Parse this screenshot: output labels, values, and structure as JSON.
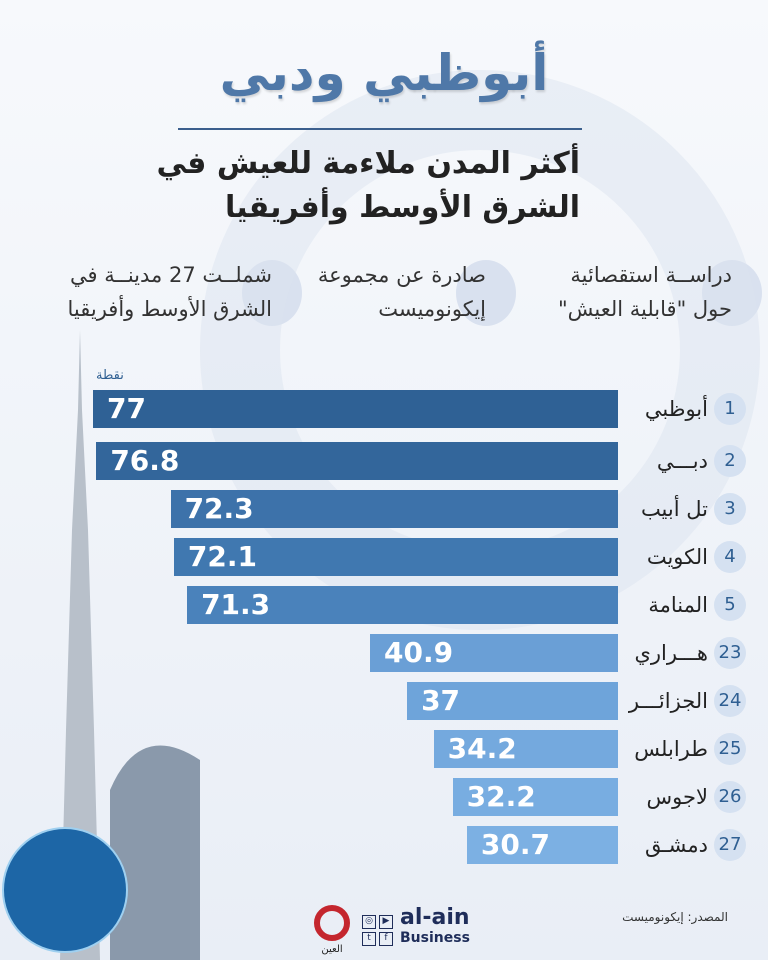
{
  "header": {
    "title": "أبوظبي ودبي",
    "subtitle_line1": "أكثر المدن ملاءمة للعيش في",
    "subtitle_line2": "الشرق الأوسط وأفريقيا"
  },
  "info": [
    {
      "line1": "دراســة استقصائية",
      "line2": "حول \"قابلية العيش\""
    },
    {
      "line1": "صادرة عن مجموعة",
      "line2": "إيكونوميست"
    },
    {
      "line1": "شملــت 27 مدينــة في",
      "line2": "الشرق الأوسط وأفريقيا"
    }
  ],
  "chart_data": {
    "type": "bar",
    "orientation": "horizontal",
    "unit_label": "نقطة",
    "ranks": [
      "1",
      "2",
      "3",
      "4",
      "5",
      "23",
      "24",
      "25",
      "26",
      "27"
    ],
    "categories": [
      "أبوظبي",
      "دبـــي",
      "تل أبيب",
      "الكويت",
      "المنامة",
      "هـــراري",
      "الجزائـــر",
      "طرابلس",
      "لاجوس",
      "دمشـق"
    ],
    "values": [
      77,
      76.8,
      72.3,
      72.1,
      71.3,
      40.9,
      37,
      34.2,
      32.2,
      30.7
    ],
    "value_labels": [
      "77",
      "76.8",
      "72.3",
      "72.1",
      "71.3",
      "40.9",
      "37",
      "34.2",
      "32.2",
      "30.7"
    ],
    "colors": [
      "#2f6195",
      "#33669b",
      "#3d72aa",
      "#4078b0",
      "#4a82bb",
      "#6a9fd6",
      "#6ea4da",
      "#74a9de",
      "#78ade1",
      "#7cb0e3"
    ]
  },
  "footer": {
    "source": "المصدر: إيكونوميست",
    "brand": "al-ain",
    "brand_sub": "Business",
    "logo_text": "العين"
  }
}
